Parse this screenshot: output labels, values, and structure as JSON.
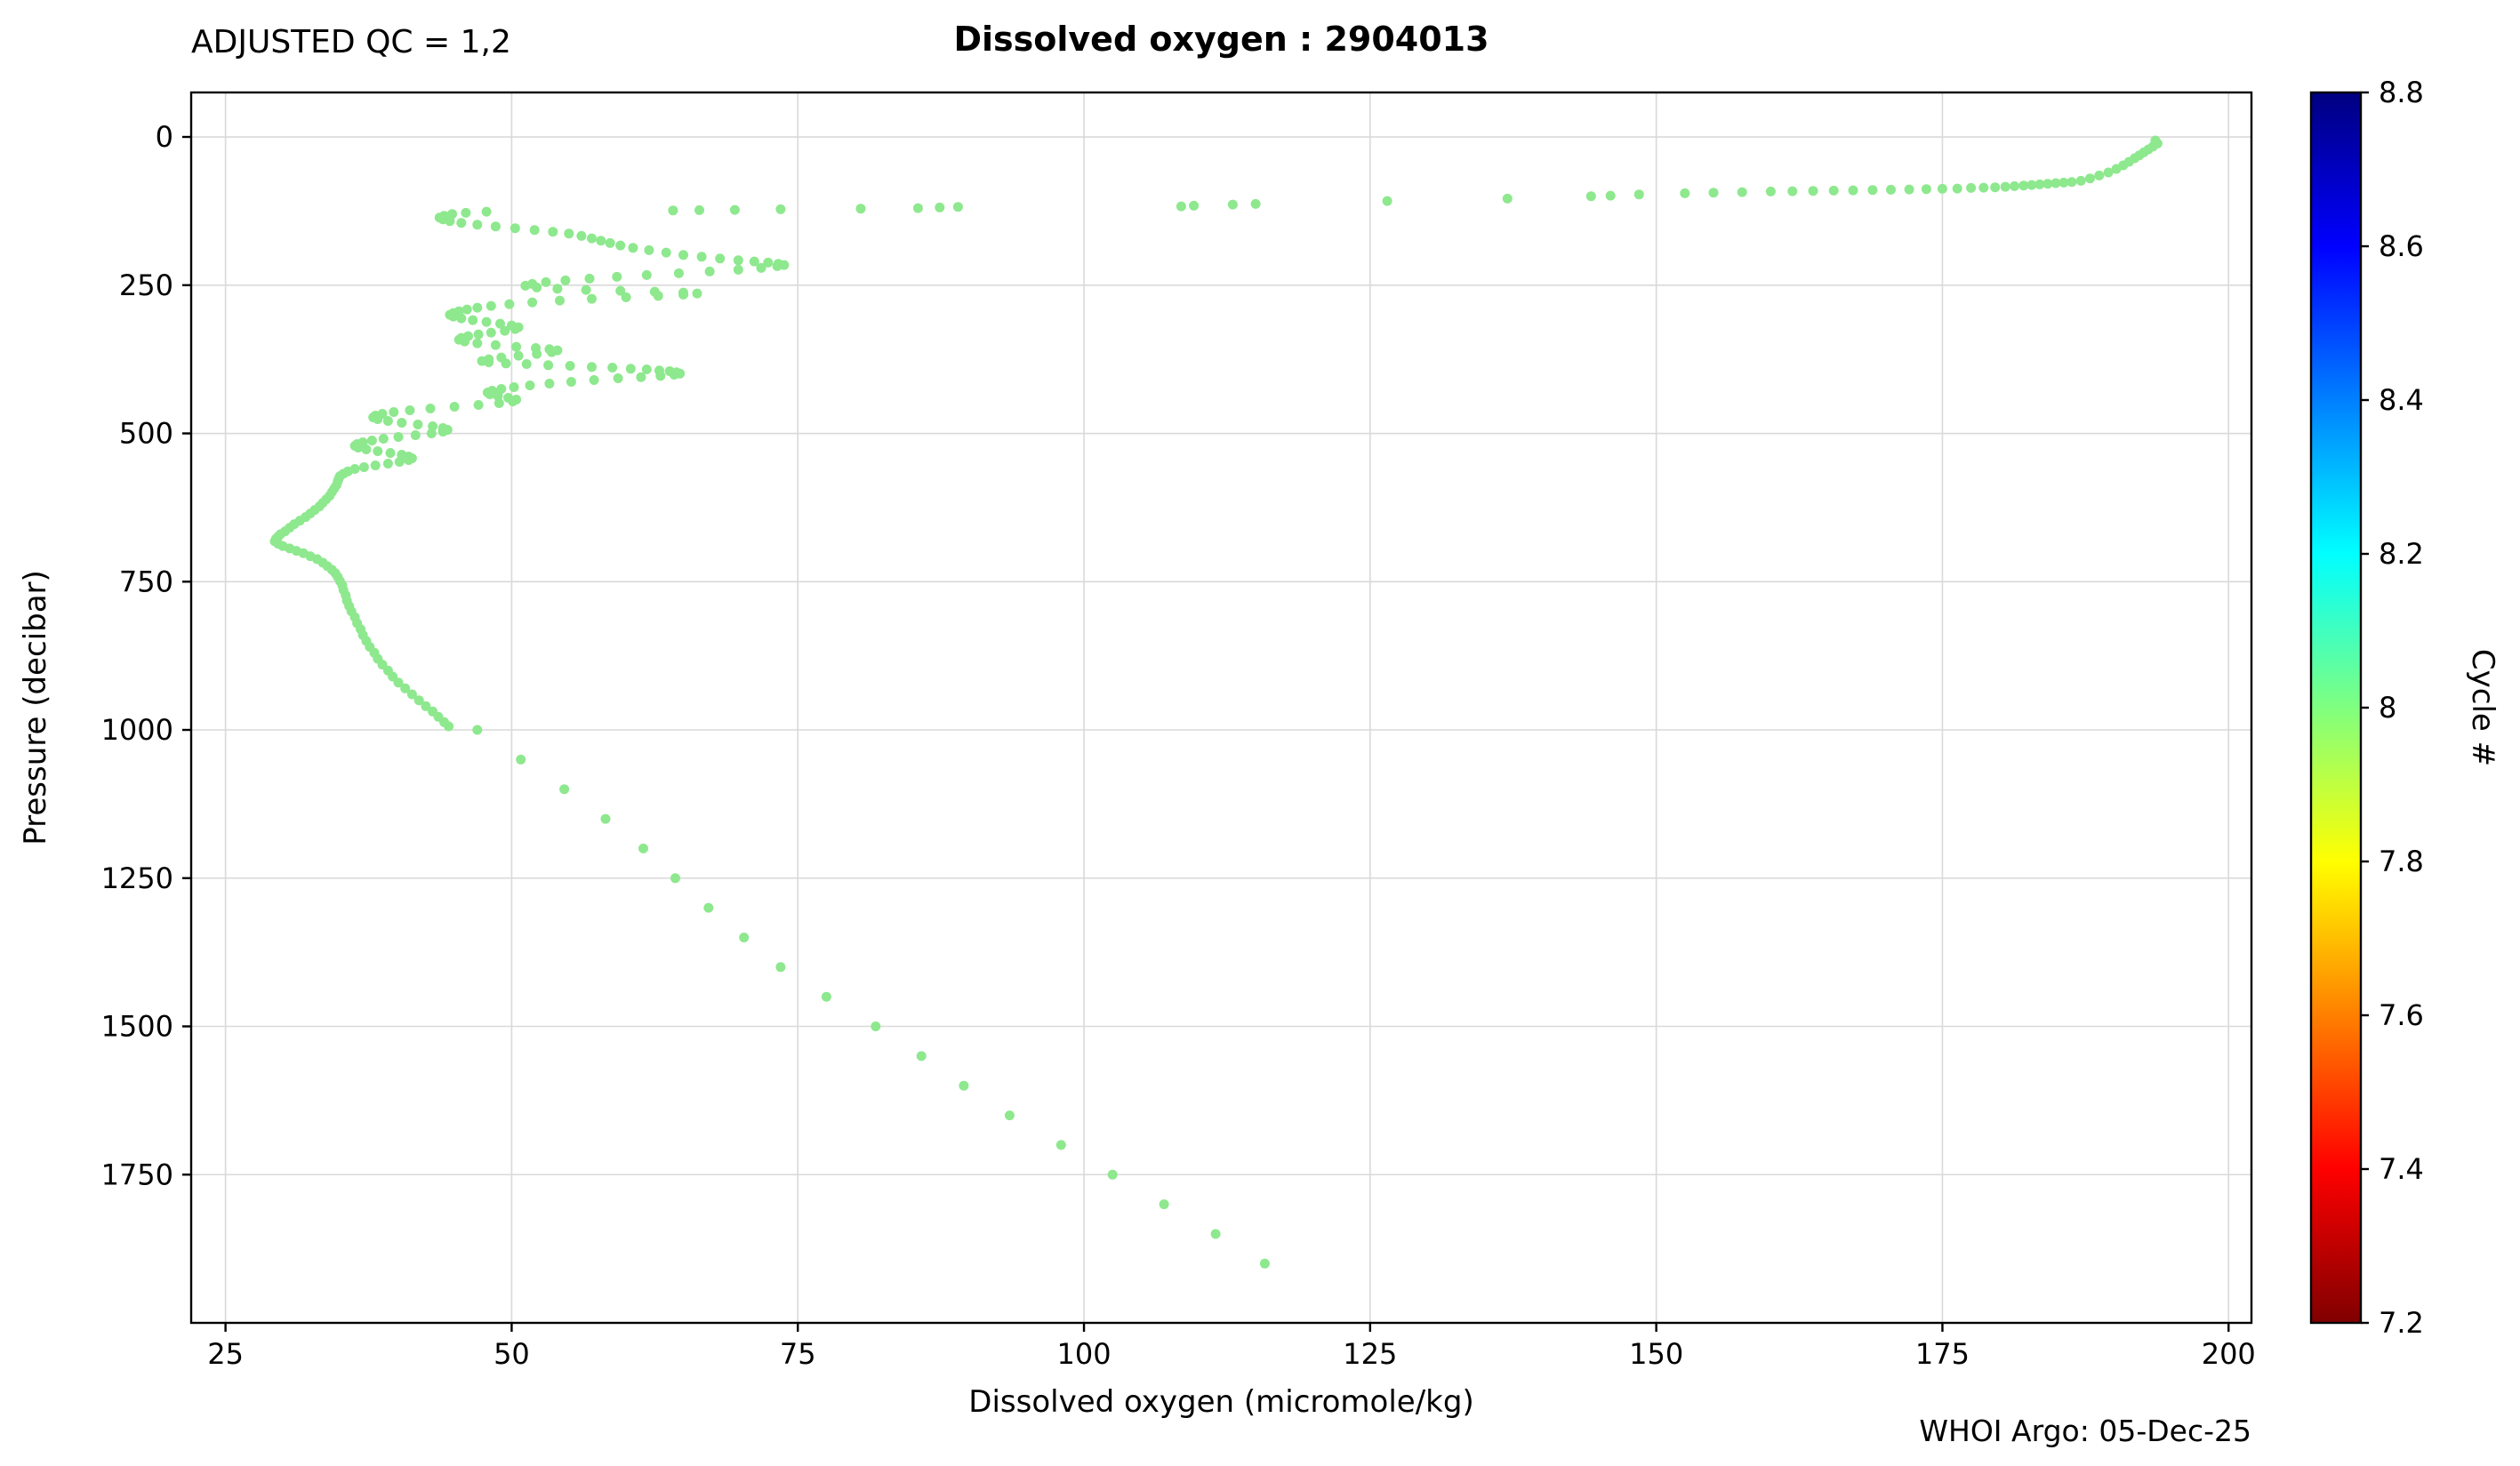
{
  "header": {
    "qc_label": "ADJUSTED QC = 1,2",
    "title": "Dissolved oxygen : 2904013"
  },
  "footer": {
    "watermark": "WHOI Argo: 05-Dec-25"
  },
  "chart_data": {
    "type": "scatter",
    "title": "Dissolved oxygen : 2904013",
    "xlabel": "Dissolved oxygen  (micromole/kg)",
    "ylabel": "Pressure  (decibar)",
    "xlim": [
      22,
      202
    ],
    "ylim": [
      -75,
      2000
    ],
    "y_inverted": true,
    "x_ticks": [
      25,
      50,
      75,
      100,
      125,
      150,
      175,
      200
    ],
    "y_ticks": [
      0,
      250,
      500,
      750,
      1000,
      1250,
      1500,
      1750
    ],
    "grid": true,
    "grid_color": "#d9d9d9",
    "point_color": "#8ee88e",
    "point_radius": 5.5,
    "series": [
      {
        "name": "profile-cycle-8",
        "cycle": 8,
        "points": [
          [
            193.6,
            6
          ],
          [
            193.8,
            11
          ],
          [
            193.4,
            16
          ],
          [
            193.0,
            21
          ],
          [
            192.6,
            26
          ],
          [
            192.2,
            31
          ],
          [
            191.8,
            36
          ],
          [
            191.3,
            42
          ],
          [
            190.8,
            48
          ],
          [
            190.2,
            54
          ],
          [
            189.5,
            60
          ],
          [
            188.7,
            65
          ],
          [
            187.9,
            70
          ],
          [
            187.1,
            74
          ],
          [
            186.3,
            76
          ],
          [
            185.6,
            77
          ],
          [
            184.9,
            78
          ],
          [
            184.2,
            79
          ],
          [
            183.5,
            80
          ],
          [
            182.8,
            81
          ],
          [
            182.1,
            82
          ],
          [
            181.3,
            83
          ],
          [
            180.5,
            84
          ],
          [
            179.6,
            85
          ],
          [
            178.6,
            85.5
          ],
          [
            177.5,
            86
          ],
          [
            176.3,
            87
          ],
          [
            175.0,
            87.5
          ],
          [
            173.6,
            88
          ],
          [
            172.1,
            88.5
          ],
          [
            170.5,
            89
          ],
          [
            168.9,
            89.5
          ],
          [
            167.2,
            90
          ],
          [
            165.5,
            90.5
          ],
          [
            163.7,
            91
          ],
          [
            161.9,
            91.5
          ],
          [
            160.0,
            92
          ],
          [
            157.5,
            93
          ],
          [
            155.0,
            94
          ],
          [
            152.5,
            95
          ],
          [
            148.5,
            97
          ],
          [
            146.0,
            99
          ],
          [
            144.3,
            100
          ],
          [
            137.0,
            104
          ],
          [
            126.5,
            108
          ],
          [
            115.0,
            113
          ],
          [
            113.0,
            114
          ],
          [
            109.6,
            116
          ],
          [
            108.5,
            117
          ],
          [
            89.0,
            118
          ],
          [
            87.4,
            119
          ],
          [
            85.5,
            120
          ],
          [
            80.5,
            121
          ],
          [
            73.5,
            122
          ],
          [
            69.5,
            123
          ],
          [
            66.4,
            123.5
          ],
          [
            64.1,
            124
          ],
          [
            47.8,
            126
          ],
          [
            46.0,
            128
          ],
          [
            44.8,
            130
          ],
          [
            44.1,
            133
          ],
          [
            43.7,
            136
          ],
          [
            44.0,
            139
          ],
          [
            44.6,
            142
          ],
          [
            45.6,
            145
          ],
          [
            47.0,
            148
          ],
          [
            48.6,
            151
          ],
          [
            50.3,
            154
          ],
          [
            52.0,
            157
          ],
          [
            53.6,
            160
          ],
          [
            55.0,
            163
          ],
          [
            56.1,
            167
          ],
          [
            57.0,
            171
          ],
          [
            57.8,
            175
          ],
          [
            58.6,
            179
          ],
          [
            59.5,
            183
          ],
          [
            60.6,
            187
          ],
          [
            62.0,
            191
          ],
          [
            63.5,
            195
          ],
          [
            65.0,
            199
          ],
          [
            66.6,
            202
          ],
          [
            68.2,
            205
          ],
          [
            69.8,
            208
          ],
          [
            71.2,
            210
          ],
          [
            72.4,
            212
          ],
          [
            73.3,
            214
          ],
          [
            73.8,
            216
          ],
          [
            73.2,
            218
          ],
          [
            71.8,
            221
          ],
          [
            69.8,
            224
          ],
          [
            67.3,
            227
          ],
          [
            64.6,
            230
          ],
          [
            61.8,
            233
          ],
          [
            59.2,
            236
          ],
          [
            56.8,
            239
          ],
          [
            54.7,
            242
          ],
          [
            53.0,
            245
          ],
          [
            51.8,
            248
          ],
          [
            51.2,
            251
          ],
          [
            52.2,
            254
          ],
          [
            54.0,
            256
          ],
          [
            56.5,
            258
          ],
          [
            59.5,
            259.5
          ],
          [
            62.5,
            261
          ],
          [
            65.0,
            262.5
          ],
          [
            66.2,
            264
          ],
          [
            65.0,
            266
          ],
          [
            62.8,
            268
          ],
          [
            60.0,
            270.5
          ],
          [
            57.0,
            273
          ],
          [
            54.2,
            276
          ],
          [
            51.8,
            279
          ],
          [
            49.8,
            282
          ],
          [
            48.2,
            285
          ],
          [
            47.0,
            288
          ],
          [
            46.1,
            291
          ],
          [
            45.4,
            294
          ],
          [
            44.9,
            297
          ],
          [
            44.6,
            300
          ],
          [
            44.9,
            303
          ],
          [
            45.6,
            306
          ],
          [
            46.6,
            309
          ],
          [
            47.8,
            312
          ],
          [
            49.0,
            315
          ],
          [
            50.0,
            318
          ],
          [
            50.6,
            321
          ],
          [
            50.3,
            324
          ],
          [
            49.4,
            327
          ],
          [
            48.2,
            330
          ],
          [
            47.1,
            333
          ],
          [
            46.2,
            336
          ],
          [
            45.6,
            339
          ],
          [
            45.4,
            342
          ],
          [
            45.9,
            345
          ],
          [
            47.0,
            348
          ],
          [
            48.6,
            351
          ],
          [
            50.4,
            354
          ],
          [
            52.1,
            356
          ],
          [
            53.3,
            358
          ],
          [
            54.0,
            360
          ],
          [
            53.5,
            363
          ],
          [
            52.2,
            366
          ],
          [
            50.6,
            369
          ],
          [
            49.1,
            372
          ],
          [
            48.0,
            375
          ],
          [
            47.4,
            378
          ],
          [
            48.0,
            380
          ],
          [
            49.5,
            382
          ],
          [
            51.3,
            383
          ],
          [
            53.2,
            385
          ],
          [
            55.1,
            386
          ],
          [
            57.0,
            388
          ],
          [
            58.8,
            389
          ],
          [
            60.4,
            391
          ],
          [
            61.8,
            392
          ],
          [
            62.9,
            394
          ],
          [
            63.8,
            395
          ],
          [
            64.4,
            397
          ],
          [
            64.7,
            399
          ],
          [
            64.2,
            401
          ],
          [
            63.0,
            403
          ],
          [
            61.3,
            405
          ],
          [
            59.3,
            407
          ],
          [
            57.2,
            410
          ],
          [
            55.2,
            413
          ],
          [
            53.3,
            416
          ],
          [
            51.6,
            419
          ],
          [
            50.2,
            422
          ],
          [
            49.1,
            425
          ],
          [
            48.3,
            428
          ],
          [
            47.9,
            431
          ],
          [
            48.1,
            434
          ],
          [
            48.8,
            437
          ],
          [
            49.7,
            440
          ],
          [
            50.4,
            443
          ],
          [
            50.1,
            446
          ],
          [
            48.9,
            449
          ],
          [
            47.1,
            452
          ],
          [
            45.0,
            455
          ],
          [
            42.9,
            458
          ],
          [
            41.1,
            461
          ],
          [
            39.7,
            464
          ],
          [
            38.7,
            467
          ],
          [
            38.1,
            470
          ],
          [
            37.9,
            473
          ],
          [
            38.3,
            476
          ],
          [
            39.2,
            479
          ],
          [
            40.4,
            482
          ],
          [
            41.8,
            485
          ],
          [
            43.1,
            488
          ],
          [
            44.0,
            491
          ],
          [
            44.4,
            494
          ],
          [
            44.0,
            497
          ],
          [
            43.0,
            500
          ],
          [
            41.6,
            503
          ],
          [
            40.1,
            506
          ],
          [
            38.8,
            509
          ],
          [
            37.8,
            512
          ],
          [
            37.0,
            515
          ],
          [
            36.5,
            518
          ],
          [
            36.3,
            521
          ],
          [
            36.6,
            524
          ],
          [
            37.3,
            527
          ],
          [
            38.3,
            530
          ],
          [
            39.4,
            533
          ],
          [
            40.4,
            536
          ],
          [
            41.0,
            539
          ],
          [
            41.3,
            542
          ],
          [
            41.0,
            545
          ],
          [
            40.2,
            548
          ],
          [
            39.2,
            551
          ],
          [
            38.1,
            554
          ],
          [
            37.1,
            557
          ],
          [
            36.3,
            560
          ],
          [
            35.7,
            564
          ],
          [
            35.3,
            568
          ],
          [
            35.0,
            572
          ],
          [
            34.9,
            576
          ],
          [
            34.8,
            581
          ],
          [
            34.7,
            587
          ],
          [
            34.5,
            593
          ],
          [
            34.3,
            599
          ],
          [
            34.1,
            605
          ],
          [
            33.8,
            611
          ],
          [
            33.5,
            617
          ],
          [
            33.2,
            623
          ],
          [
            32.8,
            629
          ],
          [
            32.4,
            635
          ],
          [
            32.0,
            641
          ],
          [
            31.5,
            647
          ],
          [
            31.0,
            653
          ],
          [
            30.6,
            659
          ],
          [
            30.2,
            665
          ],
          [
            29.8,
            670
          ],
          [
            29.6,
            674
          ],
          [
            29.4,
            678
          ],
          [
            29.3,
            682
          ],
          [
            29.6,
            686
          ],
          [
            30.0,
            690
          ],
          [
            30.6,
            694
          ],
          [
            31.2,
            698
          ],
          [
            31.8,
            702
          ],
          [
            32.4,
            707
          ],
          [
            33.0,
            712
          ],
          [
            33.5,
            718
          ],
          [
            33.9,
            724
          ],
          [
            34.3,
            730
          ],
          [
            34.6,
            736
          ],
          [
            34.8,
            742
          ],
          [
            35.0,
            749
          ],
          [
            35.2,
            756
          ],
          [
            35.3,
            764
          ],
          [
            35.5,
            773
          ],
          [
            35.6,
            782
          ],
          [
            35.8,
            791
          ],
          [
            36.0,
            800
          ],
          [
            36.3,
            810
          ],
          [
            36.5,
            820
          ],
          [
            36.8,
            830
          ],
          [
            37.0,
            840
          ],
          [
            37.3,
            850
          ],
          [
            37.6,
            860
          ],
          [
            38.0,
            870
          ],
          [
            38.3,
            880
          ],
          [
            38.7,
            890
          ],
          [
            39.2,
            900
          ],
          [
            39.6,
            910
          ],
          [
            40.1,
            920
          ],
          [
            40.7,
            930
          ],
          [
            41.3,
            940
          ],
          [
            41.9,
            950
          ],
          [
            42.5,
            960
          ],
          [
            43.1,
            969
          ],
          [
            43.6,
            978
          ],
          [
            44.1,
            987
          ],
          [
            44.5,
            994
          ],
          [
            47.0,
            1000
          ],
          [
            50.8,
            1050
          ],
          [
            54.6,
            1100
          ],
          [
            58.2,
            1150
          ],
          [
            61.5,
            1200
          ],
          [
            64.3,
            1250
          ],
          [
            67.2,
            1300
          ],
          [
            70.3,
            1350
          ],
          [
            73.5,
            1400
          ],
          [
            77.5,
            1450
          ],
          [
            81.8,
            1500
          ],
          [
            85.8,
            1550
          ],
          [
            89.5,
            1600
          ],
          [
            93.5,
            1650
          ],
          [
            98.0,
            1700
          ],
          [
            102.5,
            1750
          ],
          [
            107.0,
            1800
          ],
          [
            111.5,
            1850
          ],
          [
            115.8,
            1900
          ]
        ]
      }
    ],
    "colorbar": {
      "label": "Cycle #",
      "vmin": 7.2,
      "vmax": 8.8,
      "tick_values": [
        8.8,
        8.6,
        8.4,
        8.2,
        8.0,
        7.8,
        7.6,
        7.4,
        7.2
      ],
      "ticks": [
        "8.8",
        "8.6",
        "8.4",
        "8.2",
        "8",
        "7.8",
        "7.6",
        "7.4",
        "7.2"
      ],
      "colormap": "jet_r",
      "gradient_stops": [
        [
          "0%",
          "#000080"
        ],
        [
          "12.5%",
          "#0000ff"
        ],
        [
          "37.5%",
          "#00ffff"
        ],
        [
          "62.5%",
          "#ffff00"
        ],
        [
          "87.5%",
          "#ff0000"
        ],
        [
          "100%",
          "#800000"
        ]
      ]
    }
  }
}
